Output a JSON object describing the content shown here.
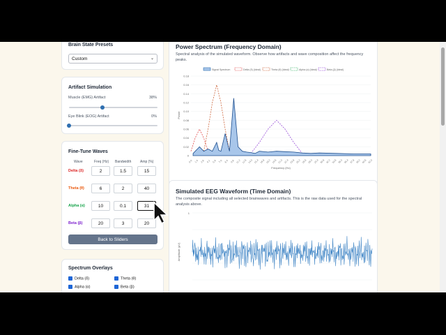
{
  "presets": {
    "title": "Brain State Presets",
    "selected": "Custom"
  },
  "artifact": {
    "title": "Artifact Simulation",
    "emg_label": "Muscle (EMG) Artifact",
    "emg_value": "38%",
    "emg_level": 0.38,
    "eog_label": "Eye Blink (EOG) Artifact",
    "eog_value": "0%",
    "eog_level": 0.0
  },
  "finetune": {
    "title": "Fine-Tune Waves",
    "headers": [
      "Wave",
      "Freq (Hz)",
      "Bandwidth",
      "Amp (%)"
    ],
    "rows": [
      {
        "name": "Delta (δ)",
        "color": "#dc2626",
        "freq": "2",
        "bw": "1.5",
        "amp": "15"
      },
      {
        "name": "Theta (θ)",
        "color": "#ea580c",
        "freq": "6",
        "bw": "2",
        "amp": "40"
      },
      {
        "name": "Alpha (α)",
        "color": "#16a34a",
        "freq": "10",
        "bw": "0.1",
        "amp": "31"
      },
      {
        "name": "Beta (β)",
        "color": "#7e22ce",
        "freq": "20",
        "bw": "3",
        "amp": "20"
      }
    ],
    "back_button": "Back to Sliders"
  },
  "overlays": {
    "title": "Spectrum Overlays",
    "items": [
      "Delta (δ)",
      "Theta (θ)",
      "Alpha (α)",
      "Beta (β)"
    ]
  },
  "spectrum": {
    "title": "Power Spectrum (Frequency Domain)",
    "desc": "Spectral analysis of the simulated waveform. Observe how artifacts and wave composition affect the frequency peaks.",
    "legend": [
      "Signal Spectrum",
      "Delta (δ) (Ideal)",
      "Theta (θ) (Ideal)",
      "Alpha (α) (Ideal)",
      "Beta (β) (Ideal)"
    ],
    "ylabel": "Power",
    "xlabel": "Frequency (Hz)",
    "yticks": [
      "0.18",
      "0.16",
      "0.14",
      "0.12",
      "0.10",
      "0.08",
      "0.06",
      "0.04",
      "0.02",
      "0"
    ]
  },
  "waveform": {
    "title": "Simulated EEG Waveform (Time Domain)",
    "desc": "The composite signal including all selected brainwaves and artifacts. This is the raw data used for the spectral analysis above.",
    "ylabel": "Amplitude (µV)",
    "ytick_top": "1"
  },
  "chart_data": [
    {
      "type": "area",
      "title": "Power Spectrum (Frequency Domain)",
      "xlabel": "Frequency (Hz)",
      "ylabel": "Power",
      "ylim": [
        0,
        0.18
      ],
      "xlim": [
        0,
        42
      ],
      "series": [
        {
          "name": "Signal Spectrum",
          "x": [
            0.5,
            2,
            3,
            4,
            5,
            6,
            6.5,
            7,
            8,
            9,
            10,
            11,
            12,
            13,
            14,
            15,
            16,
            18,
            20,
            22,
            24,
            26,
            28,
            30,
            34,
            38,
            42
          ],
          "y": [
            0.005,
            0.02,
            0.01,
            0.015,
            0.01,
            0.03,
            0.012,
            0.01,
            0.05,
            0.01,
            0.13,
            0.02,
            0.01,
            0.008,
            0.007,
            0.005,
            0.01,
            0.008,
            0.01,
            0.009,
            0.008,
            0.006,
            0.005,
            0.006,
            0.005,
            0.004,
            0.004
          ]
        },
        {
          "name": "Delta (δ) (Ideal)",
          "x": [
            0,
            1,
            2,
            3,
            4
          ],
          "y": [
            0.01,
            0.04,
            0.06,
            0.04,
            0.01
          ]
        },
        {
          "name": "Theta (θ) (Ideal)",
          "x": [
            3,
            4,
            5,
            6,
            7,
            8,
            9
          ],
          "y": [
            0.01,
            0.06,
            0.12,
            0.16,
            0.12,
            0.06,
            0.01
          ]
        },
        {
          "name": "Alpha (α) (Ideal)",
          "x": [
            9.9,
            10,
            10.1
          ],
          "y": [
            0,
            0.13,
            0
          ]
        },
        {
          "name": "Beta (β) (Ideal)",
          "x": [
            14,
            16,
            18,
            20,
            22,
            24,
            26
          ],
          "y": [
            0.005,
            0.03,
            0.06,
            0.08,
            0.06,
            0.03,
            0.005
          ]
        }
      ]
    },
    {
      "type": "line",
      "title": "Simulated EEG Waveform (Time Domain)",
      "ylabel": "Amplitude (µV)",
      "series": [
        {
          "name": "",
          "values": [
            0.1,
            0.6,
            -0.4,
            0.5,
            -0.7,
            0.3,
            0.8,
            -0.5,
            0.2,
            -0.6,
            0.7,
            -0.2,
            0.4,
            -0.8,
            0.5,
            0.1,
            -0.4,
            0.6,
            -0.3,
            0.7,
            -0.6,
            0.2,
            0.5,
            -0.7,
            0.3,
            -0.2,
            0.8,
            -0.5,
            0.4,
            -0.6
          ]
        }
      ]
    }
  ]
}
